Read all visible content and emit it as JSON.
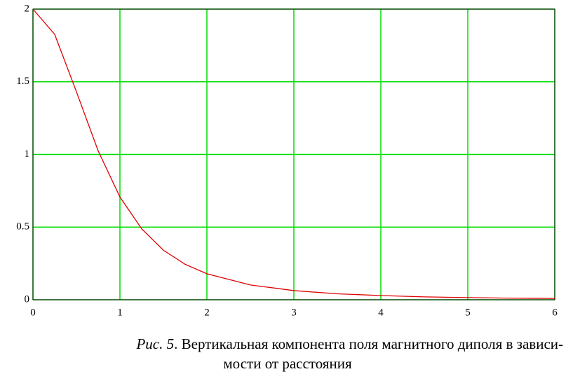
{
  "chart_data": {
    "type": "line",
    "x": [
      0,
      0.25,
      0.5,
      0.75,
      1,
      1.25,
      1.5,
      1.75,
      2,
      2.5,
      3,
      3.5,
      4,
      4.5,
      5,
      5.5,
      6
    ],
    "series": [
      {
        "color": "#e00000",
        "values": [
          2,
          1.826,
          1.431,
          1.024,
          0.707,
          0.488,
          0.341,
          0.244,
          0.179,
          0.102,
          0.063,
          0.041,
          0.029,
          0.02,
          0.015,
          0.011,
          0.009
        ]
      }
    ],
    "xlim": [
      0,
      6
    ],
    "xticks": [
      0,
      1,
      2,
      3,
      4,
      5,
      6
    ],
    "ylim": [
      0,
      2
    ],
    "yticks": [
      0,
      0.5,
      1,
      1.5,
      2
    ],
    "grid": true,
    "grid_color": "#00dd00",
    "caption": {
      "label": "Рис. 5",
      "line1": ". Вертикальная компонента поля магнитного диполя в зависи-",
      "line2": "мости от расстояния"
    }
  }
}
